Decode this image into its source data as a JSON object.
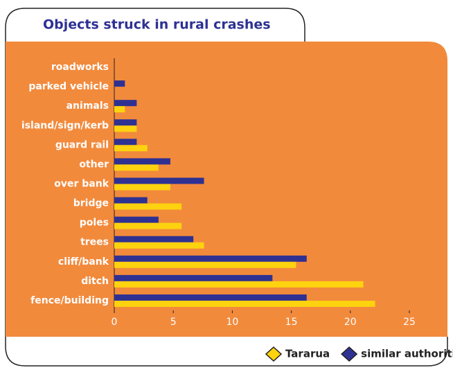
{
  "chart_data": {
    "type": "hbar",
    "title": "Objects struck in rural crashes",
    "categories": [
      "roadworks",
      "parked vehicle",
      "animals",
      "island/sign/kerb",
      "guard rail",
      "other",
      "over bank",
      "bridge",
      "poles",
      "trees",
      "cliff/bank",
      "ditch",
      "fence/building"
    ],
    "series": [
      {
        "name": "Tararua",
        "color": "#fdd20f",
        "values": [
          0,
          0,
          0.9,
          1.9,
          2.8,
          3.75,
          4.75,
          5.7,
          5.7,
          7.6,
          15.4,
          21.1,
          22.1
        ]
      },
      {
        "name": "similar authorities",
        "color": "#2e3192",
        "values": [
          0,
          0.9,
          1.9,
          1.9,
          1.9,
          4.75,
          7.6,
          2.8,
          3.75,
          6.7,
          16.3,
          13.4,
          16.3
        ]
      }
    ],
    "xlim": [
      0,
      25
    ],
    "xticks": [
      0,
      5,
      10,
      15,
      20,
      25
    ],
    "legend": "bottom-right"
  }
}
